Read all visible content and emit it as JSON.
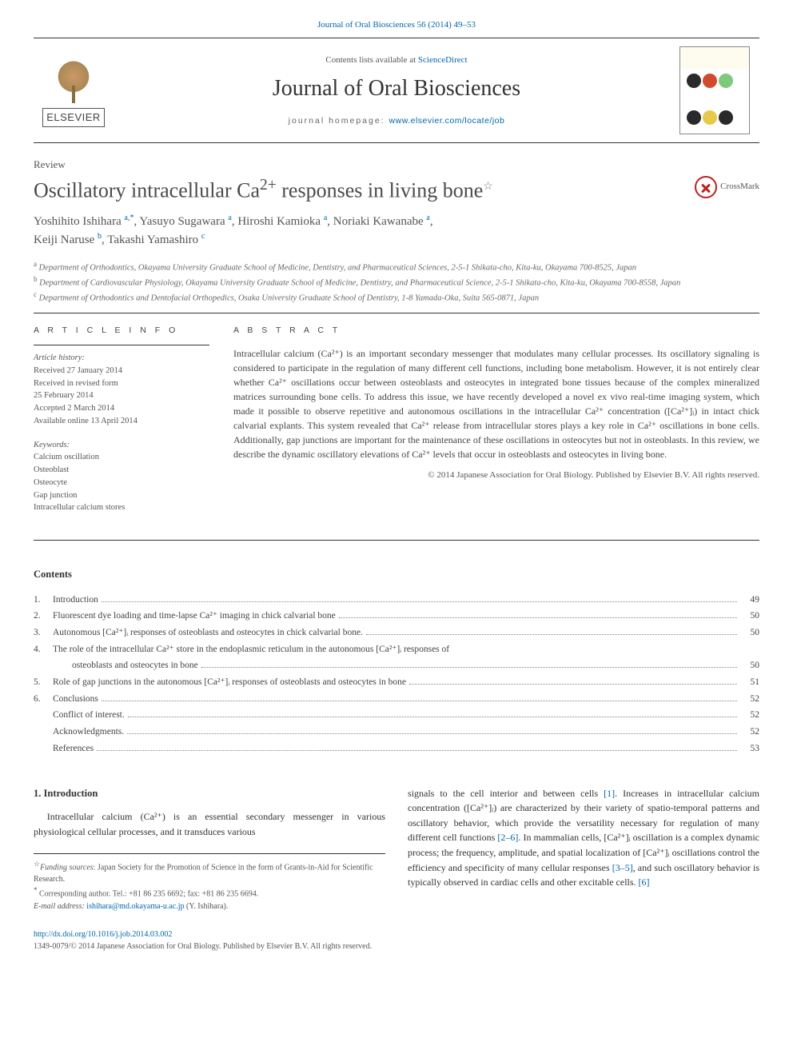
{
  "top_link": {
    "journal": "Journal of Oral Biosciences",
    "citation": "56 (2014) 49–53"
  },
  "masthead": {
    "elsevier_label": "ELSEVIER",
    "contents_prefix": "Contents lists available at ",
    "contents_site": "ScienceDirect",
    "journal_title": "Journal of Oral Biosciences",
    "homepage_prefix": "journal homepage: ",
    "homepage_url": "www.elsevier.com/locate/job",
    "cover_colors": {
      "row1": [
        "#2a2a2a",
        "#d24a2e",
        "#7fc97f"
      ],
      "row2": [
        "#2a2a2a",
        "#e6c84b",
        "#2a2a2a"
      ]
    }
  },
  "article_type": "Review",
  "title_main": "Oscillatory intracellular Ca",
  "title_sup": "2+",
  "title_rest": " responses in living bone",
  "crossmark_label": "CrossMark",
  "authors": [
    {
      "name": "Yoshihito Ishihara",
      "aff": "a,",
      "corr": "*"
    },
    {
      "name": "Yasuyo Sugawara",
      "aff": "a"
    },
    {
      "name": "Hiroshi Kamioka",
      "aff": "a"
    },
    {
      "name": "Noriaki Kawanabe",
      "aff": "a"
    },
    {
      "name": "Keiji Naruse",
      "aff": "b"
    },
    {
      "name": "Takashi Yamashiro",
      "aff": "c"
    }
  ],
  "affiliations": [
    {
      "sup": "a",
      "text": "Department of Orthodontics, Okayama University Graduate School of Medicine, Dentistry, and Pharmaceutical Sciences, 2-5-1 Shikata-cho, Kita-ku, Okayama 700-8525, Japan"
    },
    {
      "sup": "b",
      "text": "Department of Cardiovascular Physiology, Okayama University Graduate School of Medicine, Dentistry, and Pharmaceutical Science, 2-5-1 Shikata-cho, Kita-ku, Okayama 700-8558, Japan"
    },
    {
      "sup": "c",
      "text": "Department of Orthodontics and Dentofacial Orthopedics, Osaka University Graduate School of Dentistry, 1-8 Yamada-Oka, Suita 565-0871, Japan"
    }
  ],
  "article_info": {
    "head": "A R T I C L E  I N F O",
    "history_label": "Article history:",
    "history": [
      "Received 27 January 2014",
      "Received in revised form",
      "25 February 2014",
      "Accepted 2 March 2014",
      "Available online 13 April 2014"
    ],
    "keywords_label": "Keywords:",
    "keywords": [
      "Calcium oscillation",
      "Osteoblast",
      "Osteocyte",
      "Gap junction",
      "Intracellular calcium stores"
    ]
  },
  "abstract": {
    "head": "A B S T R A C T",
    "text": "Intracellular calcium (Ca²⁺) is an important secondary messenger that modulates many cellular processes. Its oscillatory signaling is considered to participate in the regulation of many different cell functions, including bone metabolism. However, it is not entirely clear whether Ca²⁺ oscillations occur between osteoblasts and osteocytes in integrated bone tissues because of the complex mineralized matrices surrounding bone cells. To address this issue, we have recently developed a novel ex vivo real-time imaging system, which made it possible to observe repetitive and autonomous oscillations in the intracellular Ca²⁺ concentration ([Ca²⁺]ᵢ) in intact chick calvarial explants. This system revealed that Ca²⁺ release from intracellular stores plays a key role in Ca²⁺ oscillations in bone cells. Additionally, gap junctions are important for the maintenance of these oscillations in osteocytes but not in osteoblasts. In this review, we describe the dynamic oscillatory elevations of Ca²⁺ levels that occur in osteoblasts and osteocytes in living bone.",
    "copyright": "© 2014 Japanese Association for Oral Biology. Published by Elsevier B.V. All rights reserved."
  },
  "contents": {
    "head": "Contents",
    "items": [
      {
        "num": "1.",
        "label": "Introduction",
        "page": "49"
      },
      {
        "num": "2.",
        "label": "Fluorescent dye loading and time-lapse Ca²⁺ imaging in chick calvarial bone",
        "page": "50"
      },
      {
        "num": "3.",
        "label": "Autonomous [Ca²⁺]ᵢ responses of osteoblasts and osteocytes in chick calvarial bone.",
        "page": "50"
      },
      {
        "num": "4.",
        "label": "The role of the intracellular Ca²⁺ store in the endoplasmic reticulum in the autonomous [Ca²⁺]ᵢ responses of",
        "page": ""
      },
      {
        "num": "",
        "label": "osteoblasts and osteocytes in bone",
        "indent": true,
        "page": "50"
      },
      {
        "num": "5.",
        "label": "Role of gap junctions in the autonomous [Ca²⁺]ᵢ responses of osteoblasts and osteocytes in bone",
        "page": "51"
      },
      {
        "num": "6.",
        "label": "Conclusions",
        "page": "52"
      },
      {
        "num": "",
        "label": "Conflict of interest.",
        "page": "52"
      },
      {
        "num": "",
        "label": "Acknowledgments.",
        "page": "52"
      },
      {
        "num": "",
        "label": "References",
        "page": "53"
      }
    ]
  },
  "body": {
    "left": {
      "sec_head": "1.  Introduction",
      "para": "Intracellular calcium (Ca²⁺) is an essential secondary messenger in various physiological cellular processes, and it transduces various"
    },
    "right": {
      "para_a": "signals to the cell interior and between cells ",
      "ref1": "[1]",
      "para_b": ". Increases in intracellular calcium concentration ([Ca²⁺]ᵢ) are characterized by their variety of spatio-temporal patterns and oscillatory behavior, which provide the versatility necessary for regulation of many different cell functions ",
      "ref2": "[2–6]",
      "para_c": ". In mammalian cells, [Ca²⁺]ᵢ oscillation is a complex dynamic process; the frequency, amplitude, and spatial localization of [Ca²⁺]ᵢ oscillations control the efficiency and specificity of many cellular responses ",
      "ref3": "[3–5]",
      "para_d": ", and such oscillatory behavior is typically observed in cardiac cells and other excitable cells. ",
      "ref4": "[6]"
    }
  },
  "footnotes": {
    "funding_label": "Funding sources",
    "funding_text": ": Japan Society for the Promotion of Science in the form of Grants-in-Aid for Scientific Research.",
    "corr_label": "Corresponding author. Tel.: ",
    "tel": "+81 86 235 6692",
    "fax_label": "; fax: ",
    "fax": "+81 86 235 6694.",
    "email_label": "E-mail address: ",
    "email": "ishihara@md.okayama-u.ac.jp",
    "email_who": " (Y. Ishihara)."
  },
  "doi": {
    "url": "http://dx.doi.org/10.1016/j.job.2014.03.002",
    "issn_line": "1349-0079/© 2014 Japanese Association for Oral Biology. Published by Elsevier B.V. All rights reserved."
  },
  "colors": {
    "link": "#0066aa",
    "text": "#333333",
    "muted": "#666666",
    "rule": "#333333"
  }
}
